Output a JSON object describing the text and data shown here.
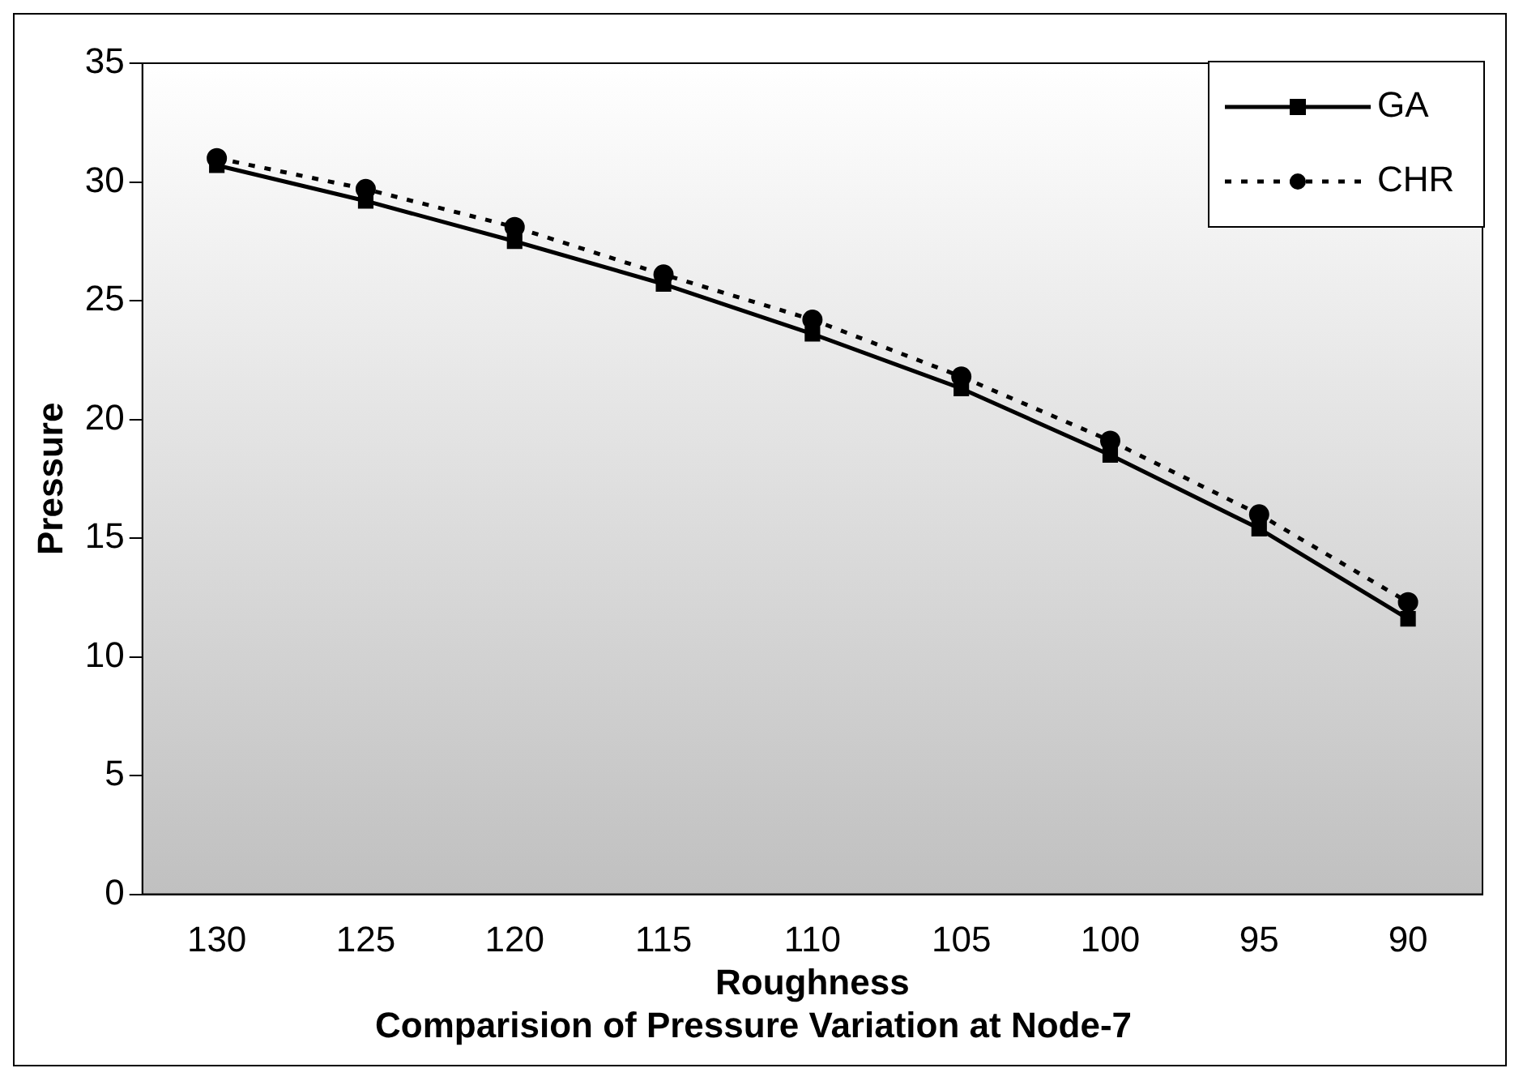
{
  "chart_data": {
    "type": "line",
    "title": "Comparision of Pressure Variation at Node-7",
    "xlabel": "Roughness",
    "ylabel": "Pressure",
    "categories": [
      "130",
      "125",
      "120",
      "115",
      "110",
      "105",
      "100",
      "95",
      "90"
    ],
    "series": [
      {
        "name": "GA",
        "color": "#000000",
        "values": [
          30.7,
          29.2,
          27.5,
          25.7,
          23.6,
          21.3,
          18.5,
          15.4,
          11.6
        ],
        "marker": "square",
        "line_style": "solid"
      },
      {
        "name": "CHR",
        "color": "#000000",
        "values": [
          31.0,
          29.7,
          28.1,
          26.1,
          24.2,
          21.8,
          19.1,
          16.0,
          12.3
        ],
        "marker": "circle",
        "line_style": "dotted"
      }
    ],
    "ylim": [
      0,
      35
    ],
    "yticks": [
      0,
      5,
      10,
      15,
      20,
      25,
      30,
      35
    ],
    "grid": false,
    "legend": "top right"
  }
}
